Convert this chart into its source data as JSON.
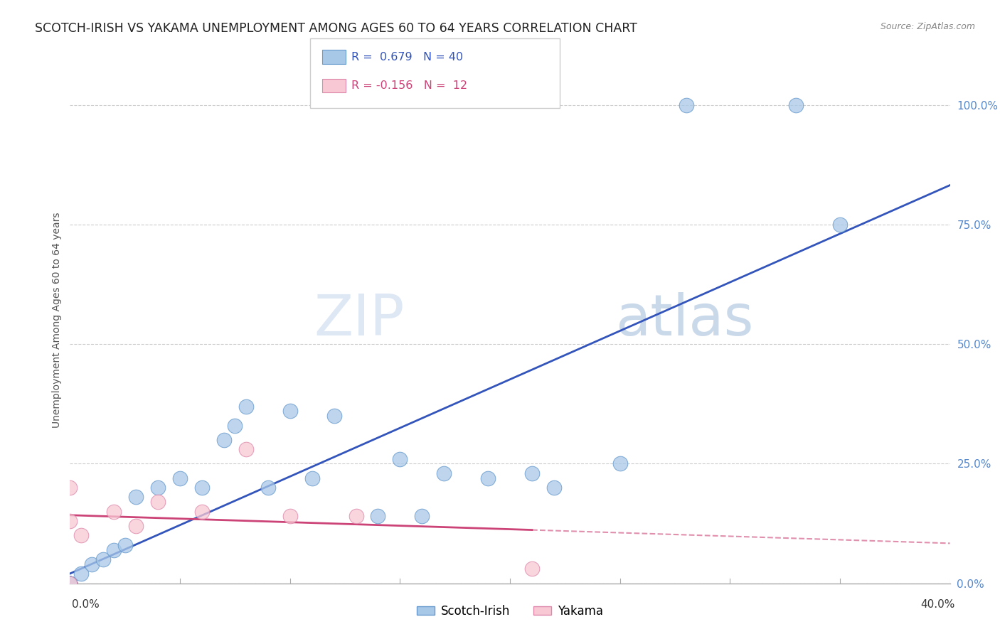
{
  "title": "SCOTCH-IRISH VS YAKAMA UNEMPLOYMENT AMONG AGES 60 TO 64 YEARS CORRELATION CHART",
  "source": "Source: ZipAtlas.com",
  "ylabel": "Unemployment Among Ages 60 to 64 years",
  "ytick_labels": [
    "0.0%",
    "25.0%",
    "50.0%",
    "75.0%",
    "100.0%"
  ],
  "ytick_values": [
    0.0,
    0.25,
    0.5,
    0.75,
    1.0
  ],
  "xmin": 0.0,
  "xmax": 0.4,
  "ymin": 0.0,
  "ymax": 1.1,
  "r_scotch_irish": 0.679,
  "n_scotch_irish": 40,
  "r_yakama": -0.156,
  "n_yakama": 12,
  "color_scotch_irish_fill": "#a8c8e8",
  "color_scotch_irish_edge": "#6699cc",
  "color_yakama_fill": "#f8c8d4",
  "color_yakama_edge": "#dd88aa",
  "color_line_scotch_irish": "#3355bb",
  "color_line_yakama": "#cc4477",
  "color_ytick": "#5588cc",
  "watermark_zip": "#c8daf0",
  "watermark_atlas": "#b8c8e0",
  "scotch_irish_x": [
    0.0,
    0.0,
    0.0,
    0.0,
    0.0,
    0.0,
    0.0,
    0.0,
    0.0,
    0.0,
    0.0,
    0.0,
    0.0,
    0.005,
    0.01,
    0.015,
    0.02,
    0.025,
    0.03,
    0.04,
    0.05,
    0.06,
    0.07,
    0.075,
    0.08,
    0.09,
    0.1,
    0.11,
    0.12,
    0.14,
    0.15,
    0.16,
    0.17,
    0.19,
    0.21,
    0.22,
    0.25,
    0.28,
    0.33,
    0.35
  ],
  "scotch_irish_y": [
    0.0,
    0.0,
    0.0,
    0.0,
    0.0,
    0.0,
    0.0,
    0.0,
    0.0,
    0.0,
    0.0,
    0.0,
    0.0,
    0.02,
    0.04,
    0.05,
    0.07,
    0.08,
    0.18,
    0.2,
    0.22,
    0.2,
    0.3,
    0.33,
    0.37,
    0.2,
    0.36,
    0.22,
    0.35,
    0.14,
    0.26,
    0.14,
    0.23,
    0.22,
    0.23,
    0.2,
    0.25,
    1.0,
    1.0,
    0.75
  ],
  "yakama_x": [
    0.0,
    0.0,
    0.0,
    0.005,
    0.02,
    0.03,
    0.04,
    0.06,
    0.08,
    0.1,
    0.13,
    0.21
  ],
  "yakama_y": [
    0.0,
    0.13,
    0.2,
    0.1,
    0.15,
    0.12,
    0.17,
    0.15,
    0.28,
    0.14,
    0.14,
    0.03
  ]
}
